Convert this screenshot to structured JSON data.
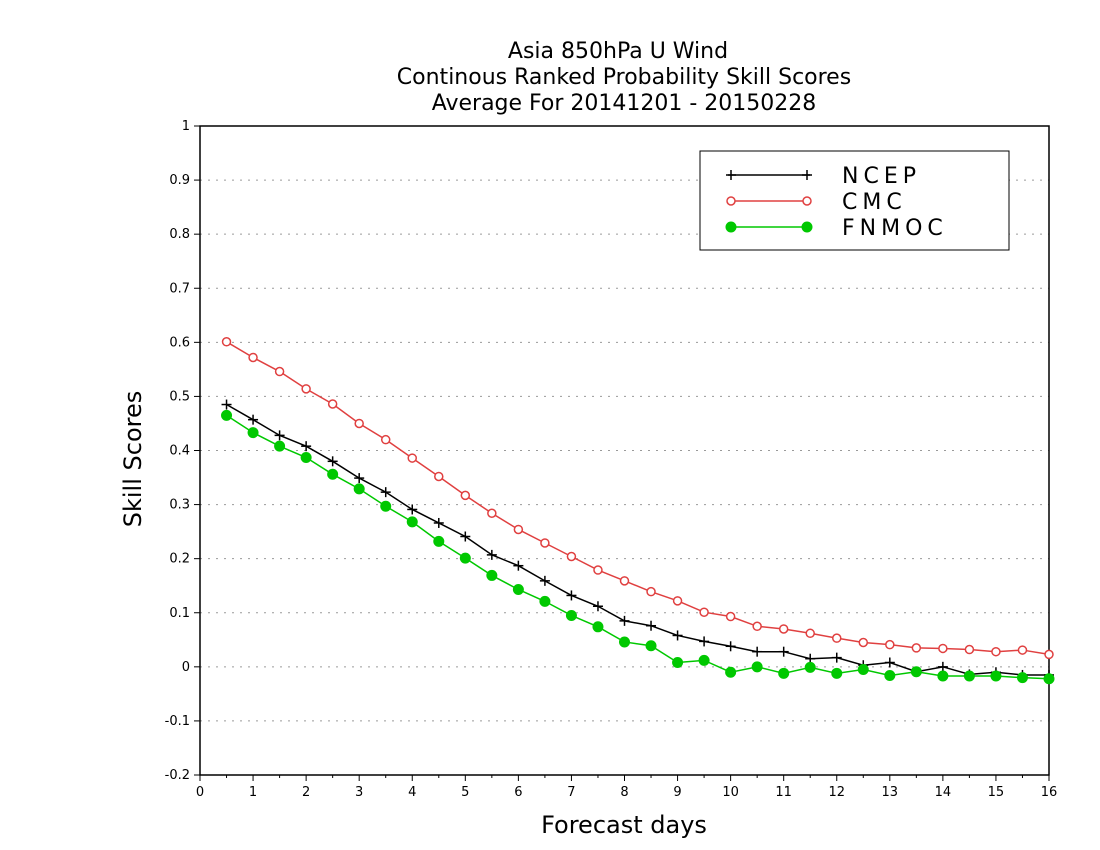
{
  "chart_data": {
    "type": "line",
    "title": [
      "Asia 850hPa U Wind",
      "Continous Ranked Probability Skill Scores",
      "Average For 20141201 - 20150228"
    ],
    "xlabel": "Forecast days",
    "ylabel": "Skill Scores",
    "xlim": [
      0,
      16
    ],
    "ylim": [
      -0.2,
      1
    ],
    "xticks": [
      "0",
      "1",
      "2",
      "3",
      "4",
      "5",
      "6",
      "7",
      "8",
      "9",
      "10",
      "11",
      "12",
      "13",
      "14",
      "15",
      "16"
    ],
    "yticks": [
      "-0.2",
      "-0.1",
      "0",
      "0.1",
      "0.2",
      "0.3",
      "0.4",
      "0.5",
      "0.6",
      "0.7",
      "0.8",
      "0.9",
      "1"
    ],
    "grid": true,
    "legend_position": "top-right",
    "x": [
      0.5,
      1,
      1.5,
      2,
      2.5,
      3,
      3.5,
      4,
      4.5,
      5,
      5.5,
      6,
      6.5,
      7,
      7.5,
      8,
      8.5,
      9,
      9.5,
      10,
      10.5,
      11,
      11.5,
      12,
      12.5,
      13,
      13.5,
      14,
      14.5,
      15,
      15.5,
      16
    ],
    "series": [
      {
        "name": "NCEP",
        "color": "#000000",
        "marker": "plus",
        "values": [
          0.485,
          0.457,
          0.428,
          0.408,
          0.38,
          0.349,
          0.323,
          0.291,
          0.266,
          0.241,
          0.207,
          0.187,
          0.159,
          0.132,
          0.112,
          0.085,
          0.076,
          0.058,
          0.047,
          0.038,
          0.028,
          0.028,
          0.015,
          0.017,
          0.003,
          0.008,
          -0.009,
          0.0,
          -0.014,
          -0.01,
          -0.015,
          -0.015
        ]
      },
      {
        "name": "CMC",
        "color": "#e04040",
        "marker": "open-circle",
        "values": [
          0.601,
          0.572,
          0.546,
          0.514,
          0.486,
          0.45,
          0.42,
          0.386,
          0.352,
          0.317,
          0.284,
          0.254,
          0.229,
          0.204,
          0.179,
          0.159,
          0.139,
          0.122,
          0.101,
          0.093,
          0.075,
          0.07,
          0.062,
          0.053,
          0.045,
          0.041,
          0.035,
          0.034,
          0.032,
          0.028,
          0.031,
          0.023
        ]
      },
      {
        "name": "FNMOC",
        "color": "#00c800",
        "marker": "filled-circle",
        "values": [
          0.465,
          0.433,
          0.408,
          0.387,
          0.356,
          0.329,
          0.297,
          0.268,
          0.232,
          0.201,
          0.169,
          0.143,
          0.121,
          0.095,
          0.074,
          0.046,
          0.039,
          0.008,
          0.012,
          -0.01,
          0.0,
          -0.012,
          -0.001,
          -0.012,
          -0.005,
          -0.016,
          -0.009,
          -0.017,
          -0.017,
          -0.017,
          -0.02,
          -0.022
        ]
      }
    ]
  }
}
